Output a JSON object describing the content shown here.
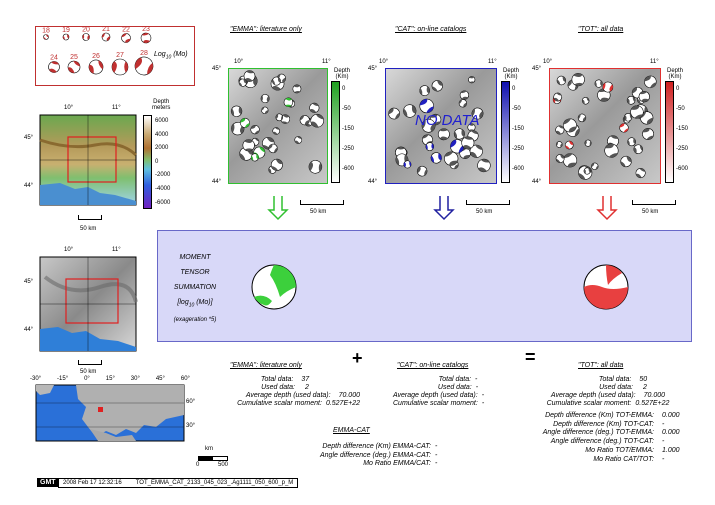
{
  "magnitude_legend": {
    "numbers": [
      "18",
      "19",
      "20",
      "21",
      "22",
      "23",
      "24",
      "25",
      "26",
      "27",
      "28"
    ],
    "axis_label": "Log",
    "axis_sub": "10",
    "axis_unit": "(Mo)",
    "color": "#c03030"
  },
  "topo_map": {
    "lon_ticks": [
      "10°",
      "11°"
    ],
    "lat_ticks": [
      "45°",
      "44°"
    ],
    "depth_label_line1": "Depth",
    "depth_label_line2": "meters",
    "depth_ticks": [
      "6000",
      "4000",
      "2000",
      "0",
      "-2000",
      "-4000",
      "-6000"
    ],
    "scale_label": "50 km"
  },
  "shaded_map": {
    "lon_ticks": [
      "10°",
      "11°"
    ],
    "lat_ticks": [
      "45°",
      "44°"
    ],
    "scale_label": "50 km"
  },
  "world_map": {
    "lon_ticks": [
      "-30°",
      "-15°",
      "0°",
      "15°",
      "30°",
      "45°",
      "60°"
    ],
    "lat_ticks": [
      "60°",
      "30°"
    ],
    "scale_label": "km",
    "scale_ticks": [
      "0",
      "500"
    ]
  },
  "panels": [
    {
      "title": "\"EMMA\": literature only",
      "color": "#30c030",
      "lon_ticks": [
        "10°",
        "11°"
      ],
      "lat_ticks": [
        "45°",
        "44°"
      ],
      "depth_ticks": [
        "0",
        "-50",
        "-150",
        "-250",
        "-600"
      ],
      "depth_label_line1": "Depth",
      "depth_label_line2": "(Km)",
      "scale_label": "50 km",
      "overlay": ""
    },
    {
      "title": "\"CAT\": on-line catalogs",
      "color": "#2020c0",
      "lon_ticks": [
        "10°",
        "11°"
      ],
      "lat_ticks": [
        "45°",
        "44°"
      ],
      "depth_ticks": [
        "0",
        "-50",
        "-150",
        "-250",
        "-600"
      ],
      "depth_label_line1": "Depth",
      "depth_label_line2": "(Km)",
      "scale_label": "50 km",
      "overlay": "NO DATA"
    },
    {
      "title": "\"TOT\": all data",
      "color": "#e03030",
      "lon_ticks": [
        "10°",
        "11°"
      ],
      "lat_ticks": [
        "45°",
        "44°"
      ],
      "depth_ticks": [
        "0",
        "-50",
        "-150",
        "-250",
        "-600"
      ],
      "depth_label_line1": "Depth",
      "depth_label_line2": "(Km)",
      "scale_label": "50 km",
      "overlay": ""
    }
  ],
  "summation": {
    "line1": "MOMENT",
    "line2": "TENSOR",
    "line3": "SUMMATION",
    "line4_pre": "[log",
    "line4_sub": "10",
    "line4_post": " (Mo)]",
    "line5": "(exageration *5)"
  },
  "operators": {
    "plus": "+",
    "equals": "="
  },
  "stats_emma": {
    "title": "\"EMMA\": literature only",
    "total_label": "Total data:",
    "total_value": "37",
    "used_label": "Used data:",
    "used_value": "2",
    "depth_label": "Average depth (used data):",
    "depth_value": "70.000",
    "moment_label": "Cumulative scalar moment:",
    "moment_value": "0.527E+22"
  },
  "stats_cat": {
    "title": "\"CAT\": on-line catalogs",
    "total_label": "Total data:",
    "total_value": "-",
    "used_label": "Used data:",
    "used_value": "-",
    "depth_label": "Average depth (used data):",
    "depth_value": "-",
    "moment_label": "Cumulative scalar moment:",
    "moment_value": "-"
  },
  "stats_tot": {
    "title": "\"TOT\": all data",
    "total_label": "Total data:",
    "total_value": "50",
    "used_label": "Used data:",
    "used_value": "2",
    "depth_label": "Average depth (used data):",
    "depth_value": "70.000",
    "moment_label": "Cumulative scalar moment:",
    "moment_value": "0.527E+22",
    "lines": [
      {
        "label": "Depth difference (Km) TOT-EMMA:",
        "value": "0.000"
      },
      {
        "label": "Depth difference (Km) TOT-CAT:",
        "value": "-"
      },
      {
        "label": "Angle difference (deg.) TOT-EMMA:",
        "value": "0.000"
      },
      {
        "label": "Angle difference (deg.) TOT-CAT:",
        "value": "-"
      },
      {
        "label": "Mo Ratio TOT/EMMA:",
        "value": "1.000"
      },
      {
        "label": "Mo Ratio CAT/TOT:",
        "value": "-"
      }
    ]
  },
  "emma_cat": {
    "title": "EMMA-CAT",
    "lines": [
      {
        "label": "Depth difference (Km) EMMA-CAT:",
        "value": "-"
      },
      {
        "label": "Angle difference (deg.) EMMA-CAT:",
        "value": "-"
      },
      {
        "label": "Mo Ratio EMMA/CAT:",
        "value": "-"
      }
    ]
  },
  "footer": {
    "logo": "GMT",
    "timestamp": "2008 Feb 17 12:32:16",
    "filename": "TOT_EMMA_CAT_2133_045_023_.Ag1111_050_600_p_M"
  }
}
